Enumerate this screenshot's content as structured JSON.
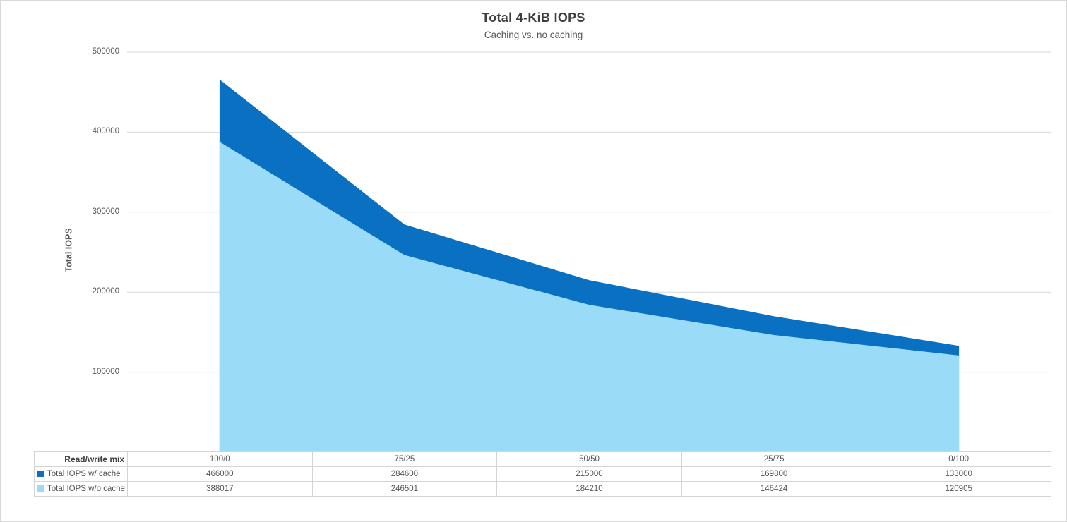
{
  "window": {
    "background": "#ffffff",
    "frame_border_color": "#d9d9d9"
  },
  "chart_data": {
    "type": "area",
    "title": "Total 4-KiB IOPS",
    "subtitle": "Caching vs. no caching",
    "ylabel": "Total IOPS",
    "row_header": "Read/write mix",
    "categories": [
      "100/0",
      "75/25",
      "50/50",
      "25/75",
      "0/100"
    ],
    "series": [
      {
        "name": "Total IOPS w/ cache",
        "color": "#0a70c1",
        "values": [
          466000,
          284600,
          215000,
          169800,
          133000
        ]
      },
      {
        "name": "Total IOPS w/o cache",
        "color": "#9adbf7",
        "values": [
          388017,
          246501,
          184210,
          146424,
          120905
        ]
      }
    ],
    "ylim": [
      0,
      500000
    ],
    "yticks": [
      500000,
      400000,
      300000,
      200000,
      100000
    ],
    "grid": true,
    "gridline_color": "#d9d9d9",
    "table_border_color": "#d4d4d4",
    "legend_position": "data-table",
    "overlap": true
  }
}
